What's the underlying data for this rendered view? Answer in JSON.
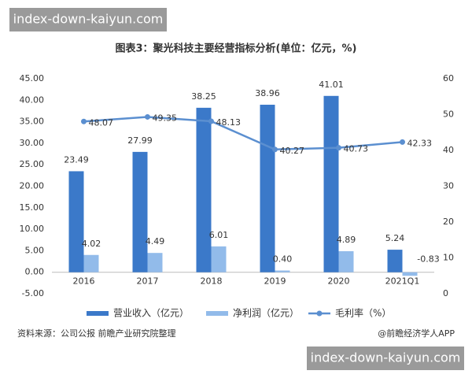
{
  "watermarks": [
    "index-down-kaiyun.com",
    "index-down-kaiyun.com"
  ],
  "chart_data": {
    "type": "bar",
    "title": "图表3：聚光科技主要经营指标分析(单位：亿元，%)",
    "categories": [
      "2016",
      "2017",
      "2018",
      "2019",
      "2020",
      "2021Q1"
    ],
    "series": [
      {
        "name": "营业收入（亿元）",
        "color": "#3b79c9",
        "values": [
          23.49,
          27.99,
          38.25,
          38.96,
          41.01,
          5.24
        ]
      },
      {
        "name": "净利润（亿元）",
        "color": "#92bbea",
        "values": [
          4.02,
          4.49,
          6.01,
          0.4,
          4.89,
          -0.83
        ],
        "value_labels": [
          "4.02",
          "4.49",
          "6.01",
          "0.40",
          "4.89",
          "-0.83"
        ]
      },
      {
        "name": "毛利率（%）",
        "color": "#5b8fd0",
        "type": "line",
        "axis": "y2",
        "values": [
          48.07,
          49.35,
          48.13,
          40.27,
          40.73,
          42.33
        ]
      }
    ],
    "ylim": [
      -5,
      45
    ],
    "yticks": [
      {
        "value": -5,
        "label": "-5.00"
      },
      {
        "value": 0,
        "label": "0.00"
      },
      {
        "value": 5,
        "label": "5.00"
      },
      {
        "value": 10,
        "label": "10.00"
      },
      {
        "value": 15,
        "label": "15.00"
      },
      {
        "value": 20,
        "label": "20.00"
      },
      {
        "value": 25,
        "label": "25.00"
      },
      {
        "value": 30,
        "label": "30.00"
      },
      {
        "value": 35,
        "label": "35.00"
      },
      {
        "value": 40,
        "label": "40.00"
      },
      {
        "value": 45,
        "label": "45.00"
      }
    ],
    "y2lim": [
      0,
      60
    ],
    "y2ticks": [
      0,
      10,
      20,
      30,
      40,
      50,
      60
    ],
    "grid": false,
    "legend": "bottom",
    "source": "资料来源：公司公报 前瞻产业研究院整理",
    "credit": "@前瞻经济学人APP"
  }
}
